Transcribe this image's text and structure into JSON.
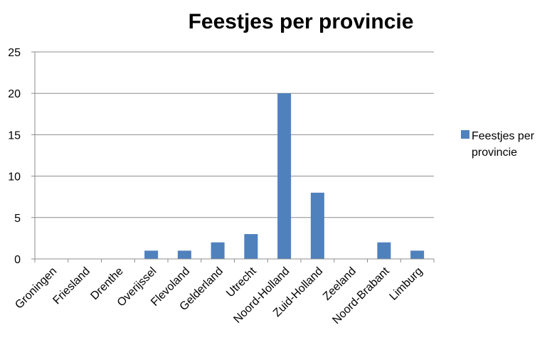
{
  "chart_data": {
    "type": "bar",
    "title": "Feestjes per provincie",
    "categories": [
      "Groningen",
      "Friesland",
      "Drenthe",
      "Overijssel",
      "Flevoland",
      "Gelderland",
      "Utrecht",
      "Noord-Holland",
      "Zuid-Holland",
      "Zeeland",
      "Noord-Brabant",
      "Limburg"
    ],
    "series": [
      {
        "name": "Feestjes per provincie",
        "values": [
          0,
          0,
          0,
          1,
          1,
          2,
          3,
          20,
          8,
          0,
          2,
          1
        ],
        "color": "#4F81BD"
      }
    ],
    "y_ticks": [
      "0",
      "5",
      "10",
      "15",
      "20",
      "25"
    ],
    "ylim": [
      0,
      25
    ],
    "grid": true,
    "legend": {
      "position": "right",
      "lines": [
        "Feestjes per",
        "provincie"
      ]
    },
    "xlabel": "",
    "ylabel": ""
  }
}
